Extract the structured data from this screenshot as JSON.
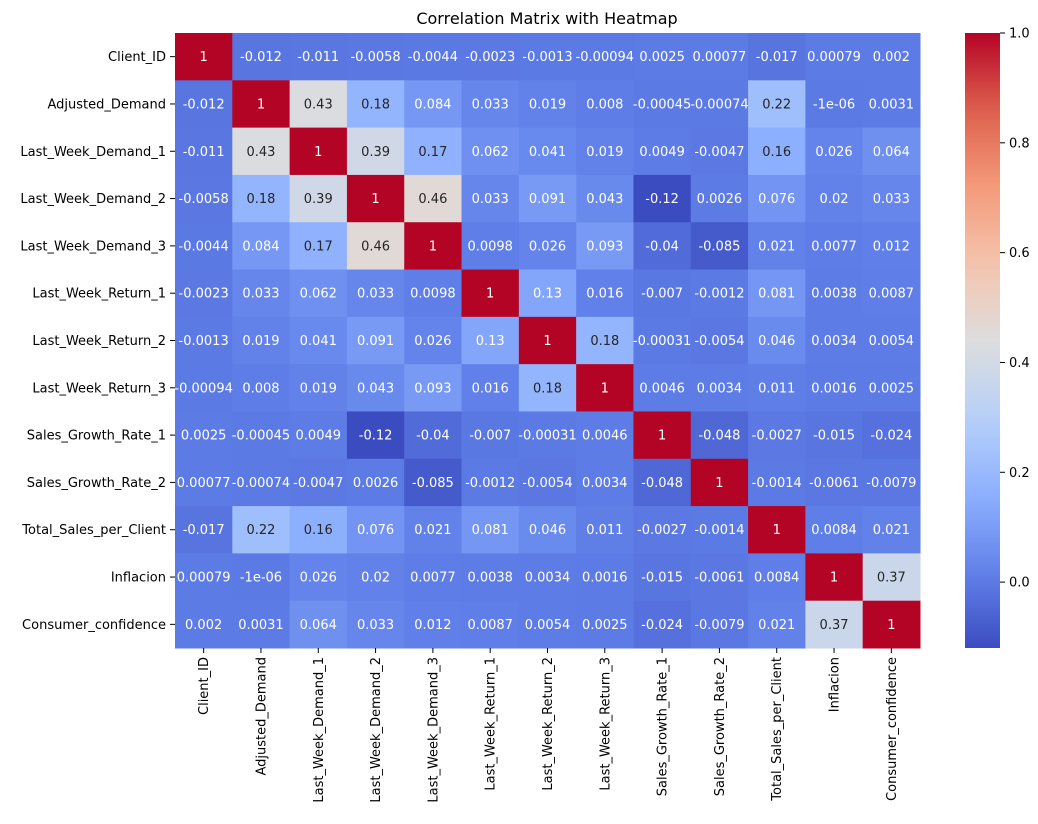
{
  "chart_data": {
    "type": "heatmap",
    "title": "Correlation Matrix with Heatmap",
    "xlabel": "",
    "ylabel": "",
    "labels": [
      "Client_ID",
      "Adjusted_Demand",
      "Last_Week_Demand_1",
      "Last_Week_Demand_2",
      "Last_Week_Demand_3",
      "Last_Week_Return_1",
      "Last_Week_Return_2",
      "Last_Week_Return_3",
      "Sales_Growth_Rate_1",
      "Sales_Growth_Rate_2",
      "Total_Sales_per_Client",
      "Inflacion",
      "Consumer_confidence"
    ],
    "matrix": [
      [
        "1",
        "-0.012",
        "-0.011",
        "-0.0058",
        "-0.0044",
        "-0.0023",
        "-0.0013",
        "-0.00094",
        "0.0025",
        "0.00077",
        "-0.017",
        "0.00079",
        "0.002"
      ],
      [
        "-0.012",
        "1",
        "0.43",
        "0.18",
        "0.084",
        "0.033",
        "0.019",
        "0.008",
        "-0.00045",
        "-0.00074",
        "0.22",
        "-1e-06",
        "0.0031"
      ],
      [
        "-0.011",
        "0.43",
        "1",
        "0.39",
        "0.17",
        "0.062",
        "0.041",
        "0.019",
        "0.0049",
        "-0.0047",
        "0.16",
        "0.026",
        "0.064"
      ],
      [
        "-0.0058",
        "0.18",
        "0.39",
        "1",
        "0.46",
        "0.033",
        "0.091",
        "0.043",
        "-0.12",
        "0.0026",
        "0.076",
        "0.02",
        "0.033"
      ],
      [
        "-0.0044",
        "0.084",
        "0.17",
        "0.46",
        "1",
        "0.0098",
        "0.026",
        "0.093",
        "-0.04",
        "-0.085",
        "0.021",
        "0.0077",
        "0.012"
      ],
      [
        "-0.0023",
        "0.033",
        "0.062",
        "0.033",
        "0.0098",
        "1",
        "0.13",
        "0.016",
        "-0.007",
        "-0.0012",
        "0.081",
        "0.0038",
        "0.0087"
      ],
      [
        "-0.0013",
        "0.019",
        "0.041",
        "0.091",
        "0.026",
        "0.13",
        "1",
        "0.18",
        "-0.00031",
        "-0.0054",
        "0.046",
        "0.0034",
        "0.0054"
      ],
      [
        "-0.00094",
        "0.008",
        "0.019",
        "0.043",
        "0.093",
        "0.016",
        "0.18",
        "1",
        "0.0046",
        "0.0034",
        "0.011",
        "0.0016",
        "0.0025"
      ],
      [
        "0.0025",
        "-0.00045",
        "0.0049",
        "-0.12",
        "-0.04",
        "-0.007",
        "-0.00031",
        "0.0046",
        "1",
        "-0.048",
        "-0.0027",
        "-0.015",
        "-0.024"
      ],
      [
        "0.00077",
        "-0.00074",
        "-0.0047",
        "0.0026",
        "-0.085",
        "-0.0012",
        "-0.0054",
        "0.0034",
        "-0.048",
        "1",
        "-0.0014",
        "-0.0061",
        "-0.0079"
      ],
      [
        "-0.017",
        "0.22",
        "0.16",
        "0.076",
        "0.021",
        "0.081",
        "0.046",
        "0.011",
        "-0.0027",
        "-0.0014",
        "1",
        "0.0084",
        "0.021"
      ],
      [
        "0.00079",
        "-1e-06",
        "0.026",
        "0.02",
        "0.0077",
        "0.0038",
        "0.0034",
        "0.0016",
        "-0.015",
        "-0.0061",
        "0.0084",
        "1",
        "0.37"
      ],
      [
        "0.002",
        "0.0031",
        "0.064",
        "0.033",
        "0.012",
        "0.0087",
        "0.0054",
        "0.0025",
        "-0.024",
        "-0.0079",
        "0.021",
        "0.37",
        "1"
      ]
    ],
    "colorscale": "coolwarm",
    "vmin": -0.12,
    "vmax": 1.0,
    "colorbar_ticks": [
      "0.0",
      "0.2",
      "0.4",
      "0.6",
      "0.8",
      "1.0"
    ],
    "colorbar_tick_values": [
      0.0,
      0.2,
      0.4,
      0.6,
      0.8,
      1.0
    ],
    "colors": {
      "low": "#3b4cc0",
      "mid": "#dddddd",
      "high": "#b40426",
      "text_light": "#ffffff",
      "text_dark": "#262626"
    }
  }
}
